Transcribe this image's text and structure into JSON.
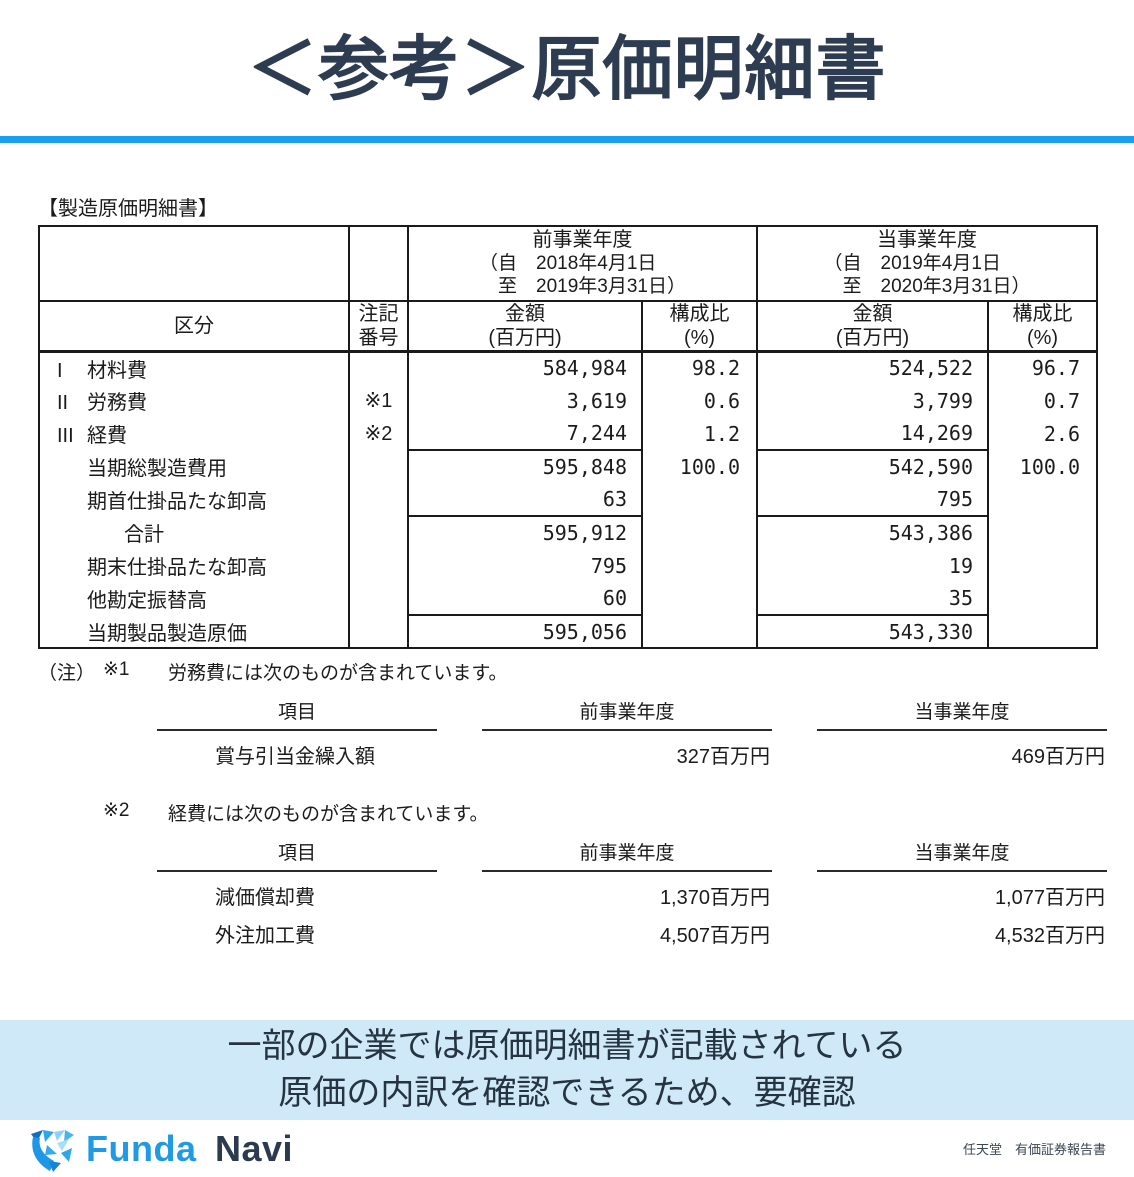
{
  "header": {
    "title": "＜参考＞原価明細書"
  },
  "colors": {
    "accent_blue": "#189ff2",
    "banner_bg": "#cfe9f9",
    "title_dark": "#2d3c50",
    "logo_blue": "#219ae4",
    "logo_navy": "#2b3a4d"
  },
  "table": {
    "label": "【製造原価明細書】",
    "period_prev": {
      "name": "前事業年度",
      "date_from": "（自　2018年4月1日",
      "date_to": "　至　2019年3月31日）"
    },
    "period_curr": {
      "name": "当事業年度",
      "date_from": "（自　2019年4月1日",
      "date_to": "　至　2020年3月31日）"
    },
    "col_category": "区分",
    "col_note_l1": "注記",
    "col_note_l2": "番号",
    "col_amount_l1": "金額",
    "col_amount_l2": "(百万円)",
    "col_ratio_l1": "構成比",
    "col_ratio_l2": "(%)",
    "rows": [
      {
        "num": "I",
        "label": "材料費",
        "note": "",
        "a1": "584,984",
        "r1": "98.2",
        "a2": "524,522",
        "r2": "96.7",
        "indent": 0,
        "rule": false
      },
      {
        "num": "II",
        "label": "労務費",
        "note": "※1",
        "a1": "3,619",
        "r1": "0.6",
        "a2": "3,799",
        "r2": "0.7",
        "indent": 0,
        "rule": false
      },
      {
        "num": "III",
        "label": "経費",
        "note": "※2",
        "a1": "7,244",
        "r1": "1.2",
        "a2": "14,269",
        "r2": "2.6",
        "indent": 0,
        "rule": false
      },
      {
        "num": "",
        "label": "当期総製造費用",
        "note": "",
        "a1": "595,848",
        "r1": "100.0",
        "a2": "542,590",
        "r2": "100.0",
        "indent": 1,
        "rule": true
      },
      {
        "num": "",
        "label": "期首仕掛品たな卸高",
        "note": "",
        "a1": "63",
        "r1": "",
        "a2": "795",
        "r2": "",
        "indent": 1,
        "rule": false
      },
      {
        "num": "",
        "label": "合計",
        "note": "",
        "a1": "595,912",
        "r1": "",
        "a2": "543,386",
        "r2": "",
        "indent": 2,
        "rule": true
      },
      {
        "num": "",
        "label": "期末仕掛品たな卸高",
        "note": "",
        "a1": "795",
        "r1": "",
        "a2": "19",
        "r2": "",
        "indent": 1,
        "rule": false
      },
      {
        "num": "",
        "label": "他勘定振替高",
        "note": "",
        "a1": "60",
        "r1": "",
        "a2": "35",
        "r2": "",
        "indent": 1,
        "rule": false
      },
      {
        "num": "",
        "label": "当期製品製造原価",
        "note": "",
        "a1": "595,056",
        "r1": "",
        "a2": "543,330",
        "r2": "",
        "indent": 1,
        "rule": true
      }
    ]
  },
  "notes": {
    "prefix": "（注）",
    "note1": {
      "marker": "※1",
      "text": "労務費には次のものが含まれています。",
      "headers": [
        "項目",
        "前事業年度",
        "当事業年度"
      ],
      "rows": [
        {
          "item": "賞与引当金繰入額",
          "prev": "327百万円",
          "curr": "469百万円"
        }
      ]
    },
    "note2": {
      "marker": "※2",
      "text": "経費には次のものが含まれています。",
      "headers": [
        "項目",
        "前事業年度",
        "当事業年度"
      ],
      "rows": [
        {
          "item": "減価償却費",
          "prev": "1,370百万円",
          "curr": "1,077百万円"
        },
        {
          "item": "外注加工費",
          "prev": "4,507百万円",
          "curr": "4,532百万円"
        }
      ]
    }
  },
  "banner": {
    "line1": "一部の企業では原価明細書が記載されている",
    "line2": "原価の内訳を確認できるため、要確認"
  },
  "footer": {
    "brand_primary": "Funda",
    "brand_secondary": "Navi",
    "source": "任天堂　有価証券報告書"
  }
}
